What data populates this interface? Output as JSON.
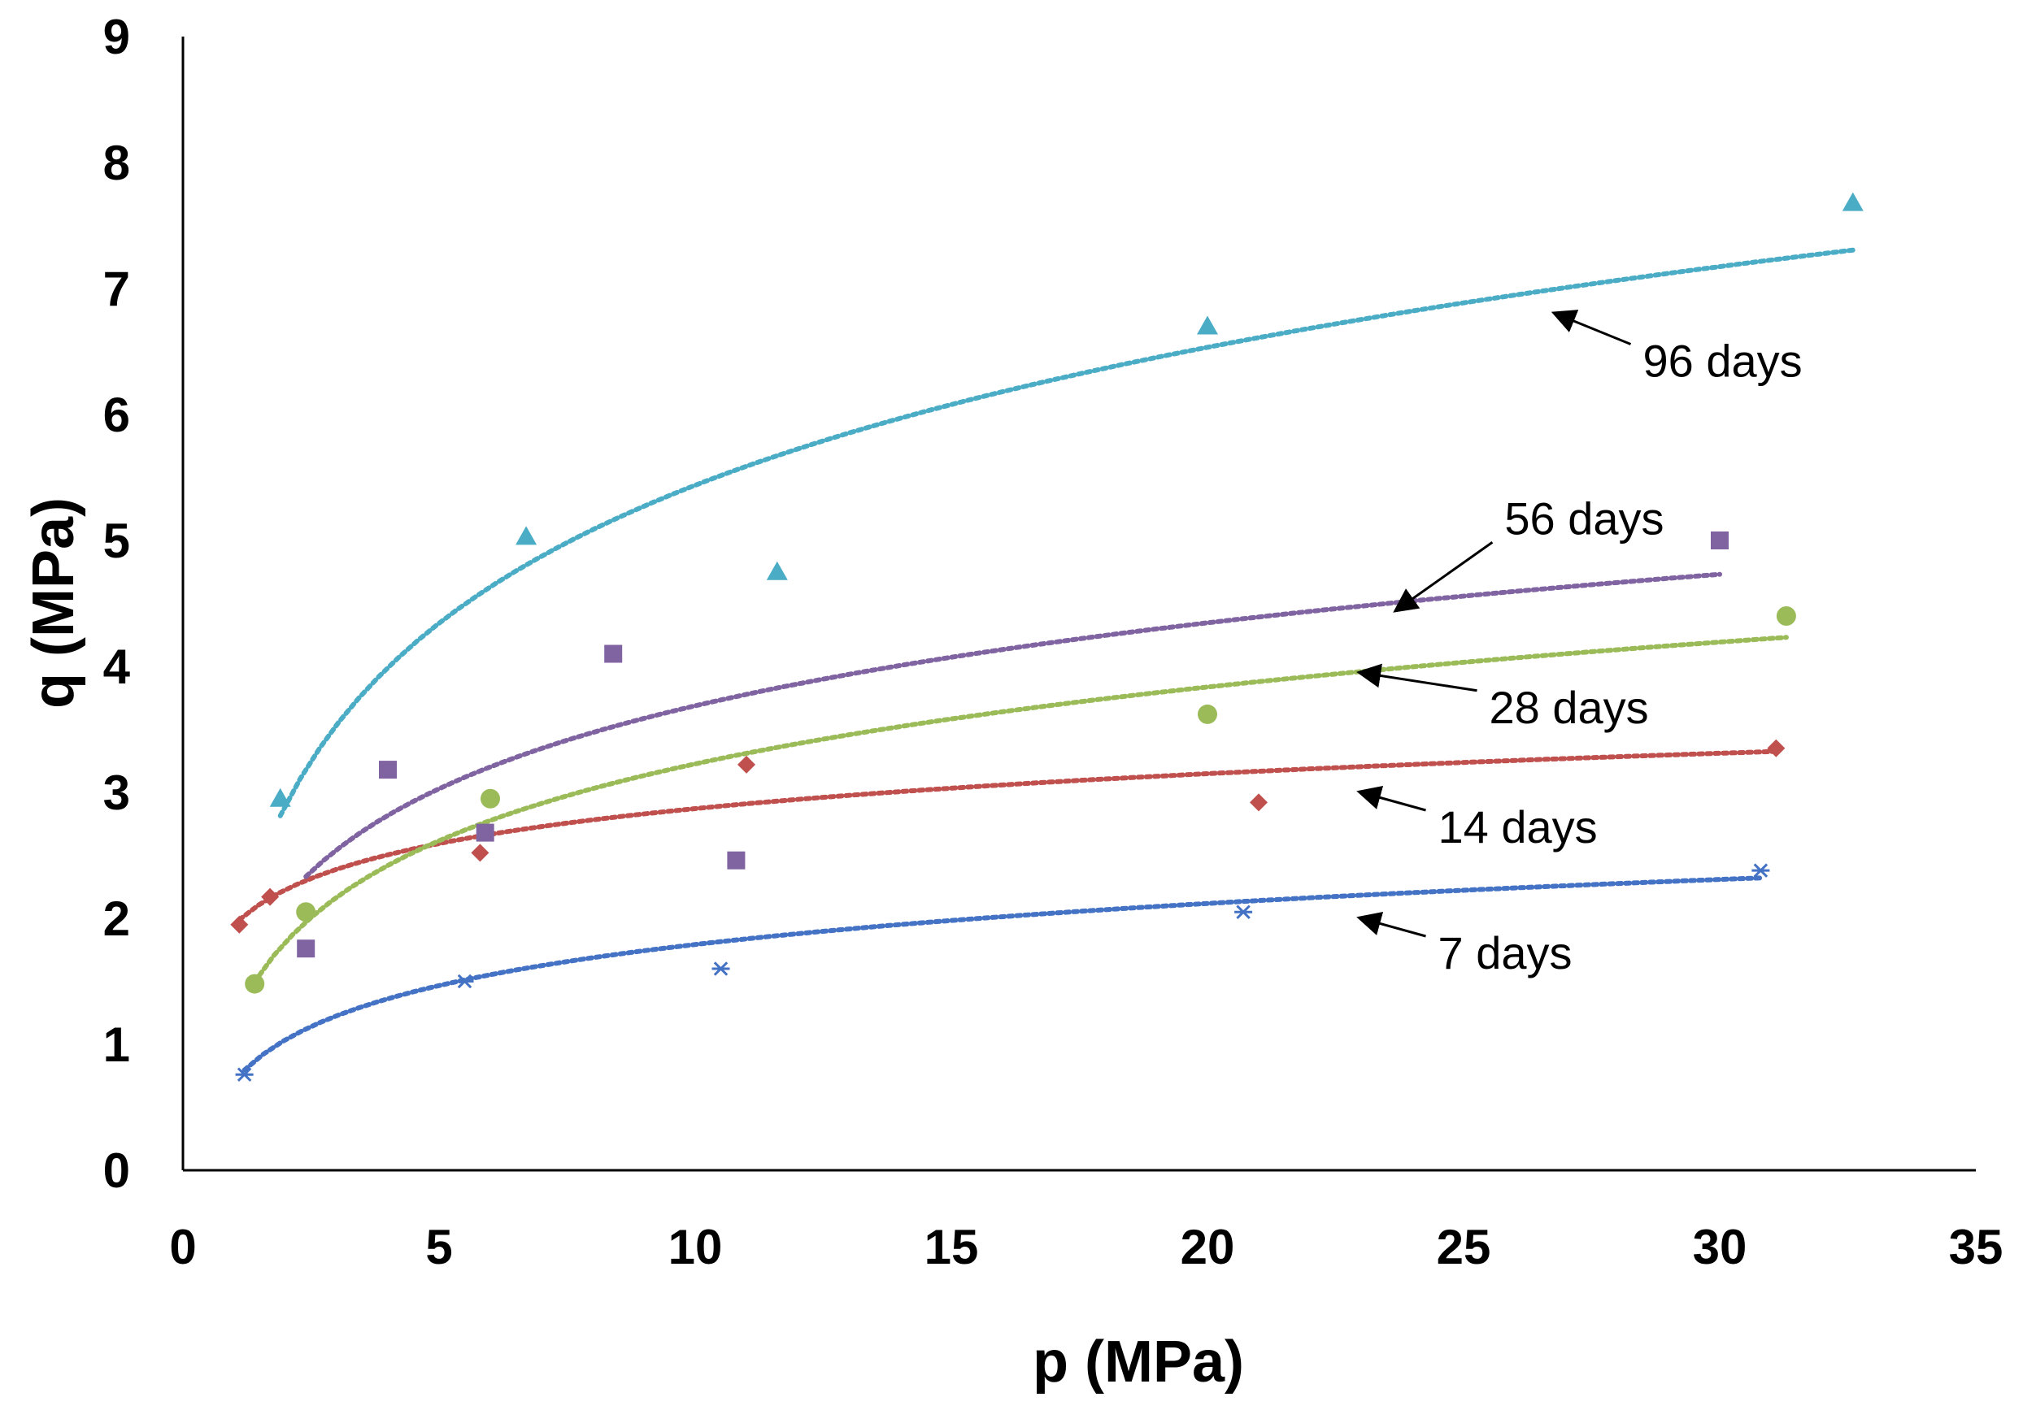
{
  "chart_data": {
    "type": "scatter",
    "title": "",
    "xlabel": "p (MPa)",
    "ylabel": "q (MPa)",
    "xlim": [
      0,
      35
    ],
    "ylim": [
      0,
      9
    ],
    "xticks": [
      0,
      5,
      10,
      15,
      20,
      25,
      30,
      35
    ],
    "yticks": [
      0,
      1,
      2,
      3,
      4,
      5,
      6,
      7,
      8,
      9
    ],
    "grid": false,
    "legend": "none",
    "trendline": "logarithmic, dotted",
    "series": [
      {
        "name": "7 days",
        "marker": "star",
        "color": "#4472C4",
        "x": [
          1.2,
          5.5,
          10.5,
          20.7,
          30.8
        ],
        "y": [
          0.76,
          1.5,
          1.6,
          2.05,
          2.38
        ],
        "trend": {
          "a": 0.47,
          "b": 0.71,
          "x_range": [
            1.2,
            30.8
          ]
        },
        "annotation": {
          "text": "7 days",
          "arrow_tip": [
            23.0,
            2.0
          ],
          "label_at": [
            24.5,
            1.6
          ]
        }
      },
      {
        "name": "14 days",
        "marker": "diamond",
        "color": "#C0504D",
        "x": [
          1.1,
          1.7,
          5.8,
          11.0,
          21.0,
          31.1
        ],
        "y": [
          1.95,
          2.17,
          2.52,
          3.22,
          2.92,
          3.35
        ],
        "trend": {
          "a": 0.4,
          "b": 1.95,
          "x_range": [
            1.1,
            31.1
          ]
        },
        "annotation": {
          "text": "14 days",
          "arrow_tip": [
            23.0,
            3.0
          ],
          "label_at": [
            24.5,
            2.6
          ]
        }
      },
      {
        "name": "28 days",
        "marker": "circle",
        "color": "#9BBB59",
        "x": [
          1.4,
          2.4,
          6.0,
          20.0,
          31.3
        ],
        "y": [
          1.48,
          2.05,
          2.95,
          3.62,
          4.4
        ],
        "trend": {
          "a": 0.88,
          "b": 1.2,
          "x_range": [
            1.4,
            31.3
          ]
        },
        "annotation": {
          "text": "28 days",
          "arrow_tip": [
            23.0,
            3.95
          ],
          "label_at": [
            25.5,
            3.55
          ]
        }
      },
      {
        "name": "56 days",
        "marker": "square",
        "color": "#8064A2",
        "x": [
          2.4,
          4.0,
          5.9,
          8.4,
          10.8,
          30.0
        ],
        "y": [
          1.76,
          3.18,
          2.68,
          4.1,
          2.46,
          5.0
        ],
        "trend": {
          "a": 0.95,
          "b": 1.5,
          "x_range": [
            2.4,
            30.0
          ]
        },
        "annotation": {
          "text": "56 days",
          "arrow_tip": [
            23.7,
            4.45
          ],
          "label_at": [
            25.8,
            5.05
          ]
        }
      },
      {
        "name": "96 days",
        "marker": "triangle",
        "color": "#4BACC6",
        "x": [
          1.9,
          6.7,
          11.6,
          20.0,
          32.6
        ],
        "y": [
          2.95,
          5.03,
          4.75,
          6.7,
          7.68
        ],
        "trend": {
          "a": 1.58,
          "b": 1.8,
          "x_range": [
            1.9,
            32.6
          ]
        },
        "annotation": {
          "text": "96 days",
          "arrow_tip": [
            26.8,
            6.8
          ],
          "label_at": [
            28.5,
            6.3
          ]
        }
      }
    ]
  }
}
